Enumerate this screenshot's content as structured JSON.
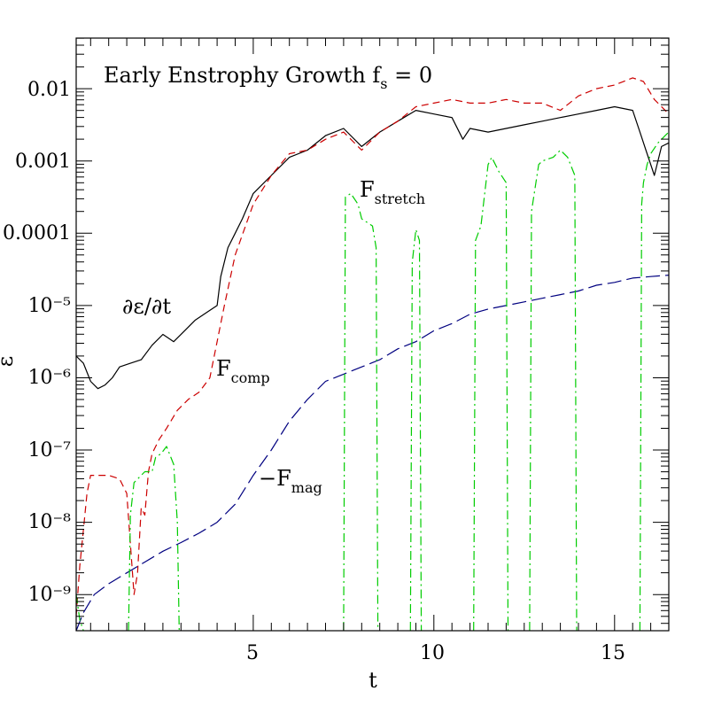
{
  "chart_data": {
    "type": "line",
    "title": "Early Enstrophy Growth fₛ = 0",
    "title_parts": {
      "main": "Early Enstrophy Growth f",
      "sub": "s",
      "rest": " = 0"
    },
    "xlabel": "t",
    "ylabel": "ε̇",
    "xlim": [
      0.1,
      16.5
    ],
    "ylim_log10": [
      -9.5,
      -1.3
    ],
    "xscale": "linear",
    "yscale": "log",
    "x_ticks": [
      5,
      10,
      15
    ],
    "x_tick_labels": [
      "5",
      "10",
      "15"
    ],
    "y_ticks_log10": [
      -9,
      -8,
      -7,
      -6,
      -5,
      -4,
      -3,
      -2
    ],
    "y_tick_labels": [
      "10⁻⁹",
      "10⁻⁸",
      "10⁻⁷",
      "10⁻⁶",
      "10⁻⁵",
      "0.0001",
      "0.001",
      "0.01"
    ],
    "annotations": [
      {
        "id": "deps",
        "text": "∂ε/∂t",
        "main": "∂ε/∂t",
        "sub": ""
      },
      {
        "id": "fcomp",
        "text": "F_comp",
        "main": "F",
        "sub": "comp"
      },
      {
        "id": "fstretch",
        "text": "F_stretch",
        "main": "F",
        "sub": "stretch"
      },
      {
        "id": "fmag",
        "text": "−F_mag",
        "main": "−F",
        "sub": "mag"
      }
    ],
    "series": [
      {
        "name": "∂ε/∂t",
        "color": "#000000",
        "style": "solid",
        "x": [
          0.1,
          0.3,
          0.5,
          0.7,
          0.9,
          1.1,
          1.3,
          1.6,
          1.9,
          2.2,
          2.5,
          2.8,
          3.1,
          3.4,
          3.7,
          4.0,
          4.1,
          4.3,
          4.5,
          4.7,
          5.0,
          5.5,
          6.0,
          6.5,
          7.0,
          7.5,
          8.0,
          8.5,
          9.0,
          9.5,
          10.0,
          10.5,
          10.8,
          11.0,
          11.5,
          12.0,
          12.5,
          13.0,
          13.5,
          14.0,
          14.5,
          15.0,
          15.5,
          15.7,
          15.9,
          16.1,
          16.3,
          16.5
        ],
        "log10_y": [
          -5.7,
          -5.8,
          -6.05,
          -6.15,
          -6.1,
          -6.0,
          -5.85,
          -5.8,
          -5.75,
          -5.55,
          -5.4,
          -5.5,
          -5.35,
          -5.2,
          -5.1,
          -5.0,
          -4.6,
          -4.2,
          -4.0,
          -3.8,
          -3.45,
          -3.2,
          -2.95,
          -2.85,
          -2.65,
          -2.55,
          -2.8,
          -2.6,
          -2.45,
          -2.3,
          -2.35,
          -2.4,
          -2.7,
          -2.55,
          -2.6,
          -2.55,
          -2.5,
          -2.45,
          -2.4,
          -2.35,
          -2.3,
          -2.25,
          -2.3,
          -2.6,
          -2.9,
          -3.2,
          -2.8,
          -2.75
        ]
      },
      {
        "name": "F_comp",
        "color": "#cc0000",
        "style": "dashed",
        "x": [
          0.1,
          0.2,
          0.3,
          0.4,
          0.5,
          0.7,
          1.0,
          1.3,
          1.5,
          1.6,
          1.7,
          1.8,
          1.9,
          2.0,
          2.1,
          2.2,
          2.4,
          2.6,
          2.9,
          3.2,
          3.5,
          3.8,
          4.0,
          4.2,
          4.5,
          5.0,
          5.5,
          6.0,
          6.5,
          7.0,
          7.5,
          8.0,
          8.5,
          9.0,
          9.5,
          10.0,
          10.5,
          11.0,
          11.5,
          12.0,
          12.5,
          13.0,
          13.5,
          14.0,
          14.5,
          15.0,
          15.5,
          15.8,
          16.1,
          16.5
        ],
        "log10_y": [
          -9.3,
          -8.6,
          -8.1,
          -7.6,
          -7.35,
          -7.35,
          -7.35,
          -7.4,
          -7.6,
          -8.3,
          -9.0,
          -8.7,
          -7.8,
          -7.9,
          -7.3,
          -7.05,
          -6.85,
          -6.7,
          -6.45,
          -6.3,
          -6.2,
          -6.0,
          -5.5,
          -5.0,
          -4.3,
          -3.6,
          -3.2,
          -2.9,
          -2.85,
          -2.7,
          -2.6,
          -2.85,
          -2.6,
          -2.45,
          -2.25,
          -2.2,
          -2.15,
          -2.2,
          -2.2,
          -2.15,
          -2.2,
          -2.2,
          -2.3,
          -2.1,
          -2.0,
          -1.95,
          -1.85,
          -1.9,
          -2.15,
          -2.35
        ]
      },
      {
        "name": "−F_mag",
        "color": "#000080",
        "style": "long-dashed",
        "x": [
          0.1,
          0.3,
          0.6,
          1.0,
          1.5,
          2.0,
          2.5,
          3.0,
          3.5,
          4.0,
          4.5,
          5.0,
          5.5,
          6.0,
          6.5,
          7.0,
          7.5,
          8.0,
          8.5,
          9.0,
          9.5,
          10.0,
          10.5,
          11.0,
          11.5,
          12.0,
          12.5,
          13.0,
          13.5,
          14.0,
          14.5,
          15.0,
          15.5,
          16.0,
          16.5
        ],
        "log10_y": [
          -9.5,
          -9.25,
          -9.0,
          -8.85,
          -8.7,
          -8.55,
          -8.4,
          -8.28,
          -8.15,
          -8.0,
          -7.75,
          -7.35,
          -7.0,
          -6.6,
          -6.3,
          -6.05,
          -5.95,
          -5.85,
          -5.75,
          -5.6,
          -5.5,
          -5.35,
          -5.25,
          -5.12,
          -5.05,
          -5.0,
          -4.95,
          -4.9,
          -4.85,
          -4.8,
          -4.72,
          -4.68,
          -4.62,
          -4.6,
          -4.58
        ]
      },
      {
        "name": "F_stretch",
        "color": "#00cc00",
        "style": "dash-dot",
        "segments": [
          {
            "x": [
              0.1,
              0.2,
              0.3
            ],
            "log10_y": [
              -9.0,
              -9.35,
              -9.5
            ]
          },
          {
            "x": [
              1.55,
              1.6,
              1.7,
              2.0,
              2.2,
              2.3,
              2.45,
              2.6,
              2.8,
              2.9,
              2.95
            ],
            "log10_y": [
              -9.5,
              -7.9,
              -7.45,
              -7.3,
              -7.3,
              -7.1,
              -7.05,
              -6.95,
              -7.2,
              -8.0,
              -9.5
            ]
          },
          {
            "x": [
              7.5,
              7.55,
              7.7,
              7.9,
              8.0,
              8.3,
              8.4,
              8.45
            ],
            "log10_y": [
              -9.5,
              -3.5,
              -3.45,
              -3.6,
              -3.8,
              -3.9,
              -4.2,
              -9.5
            ]
          },
          {
            "x": [
              9.35,
              9.4,
              9.5,
              9.6,
              9.65
            ],
            "log10_y": [
              -9.5,
              -4.4,
              -3.95,
              -4.1,
              -9.5
            ]
          },
          {
            "x": [
              11.1,
              11.15,
              11.3,
              11.5,
              11.6,
              11.8,
              12.0,
              12.05
            ],
            "log10_y": [
              -9.5,
              -4.1,
              -3.9,
              -3.05,
              -2.95,
              -3.15,
              -3.3,
              -9.5
            ]
          },
          {
            "x": [
              12.65,
              12.7,
              12.9,
              13.0,
              13.3,
              13.5,
              13.7,
              13.9,
              13.95
            ],
            "log10_y": [
              -9.5,
              -3.7,
              -3.05,
              -3.0,
              -2.95,
              -2.85,
              -2.95,
              -3.2,
              -9.5
            ]
          },
          {
            "x": [
              15.7,
              15.75,
              15.8,
              15.9,
              16.0,
              16.2,
              16.4,
              16.5
            ],
            "log10_y": [
              -9.5,
              -3.6,
              -3.3,
              -3.05,
              -2.9,
              -2.75,
              -2.65,
              -2.6
            ]
          }
        ]
      }
    ]
  }
}
